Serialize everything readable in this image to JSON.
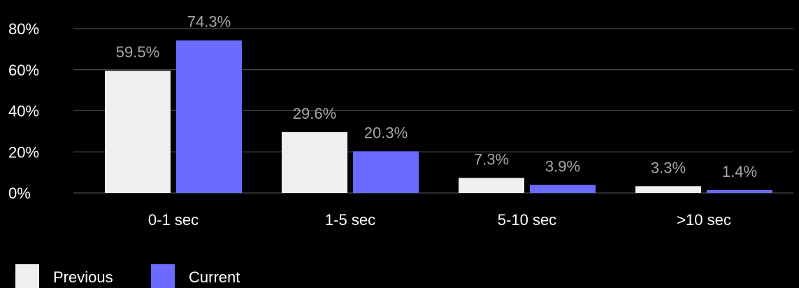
{
  "chart_data": {
    "type": "bar",
    "categories": [
      "0-1 sec",
      "1-5 sec",
      "5-10 sec",
      ">10 sec"
    ],
    "series": [
      {
        "name": "Previous",
        "values": [
          59.5,
          29.6,
          7.3,
          3.3
        ],
        "labels": [
          "59.5%",
          "29.6%",
          "7.3%",
          "3.3%"
        ],
        "color": "#efefef"
      },
      {
        "name": "Current",
        "values": [
          74.3,
          20.3,
          3.9,
          1.4
        ],
        "labels": [
          "74.3%",
          "20.3%",
          "3.9%",
          "1.4%"
        ],
        "color": "#6b6bff"
      }
    ],
    "ylim": [
      0,
      80
    ],
    "yticks": [
      0,
      20,
      40,
      60,
      80
    ],
    "ytick_labels": [
      "0%",
      "20%",
      "40%",
      "60%",
      "80%"
    ],
    "grid": true,
    "legend": "bottom-left",
    "colors": {
      "background": "#000000",
      "grid": "#5a5a5a",
      "text": "#ffffff",
      "value_label": "#a6a6a6"
    }
  }
}
